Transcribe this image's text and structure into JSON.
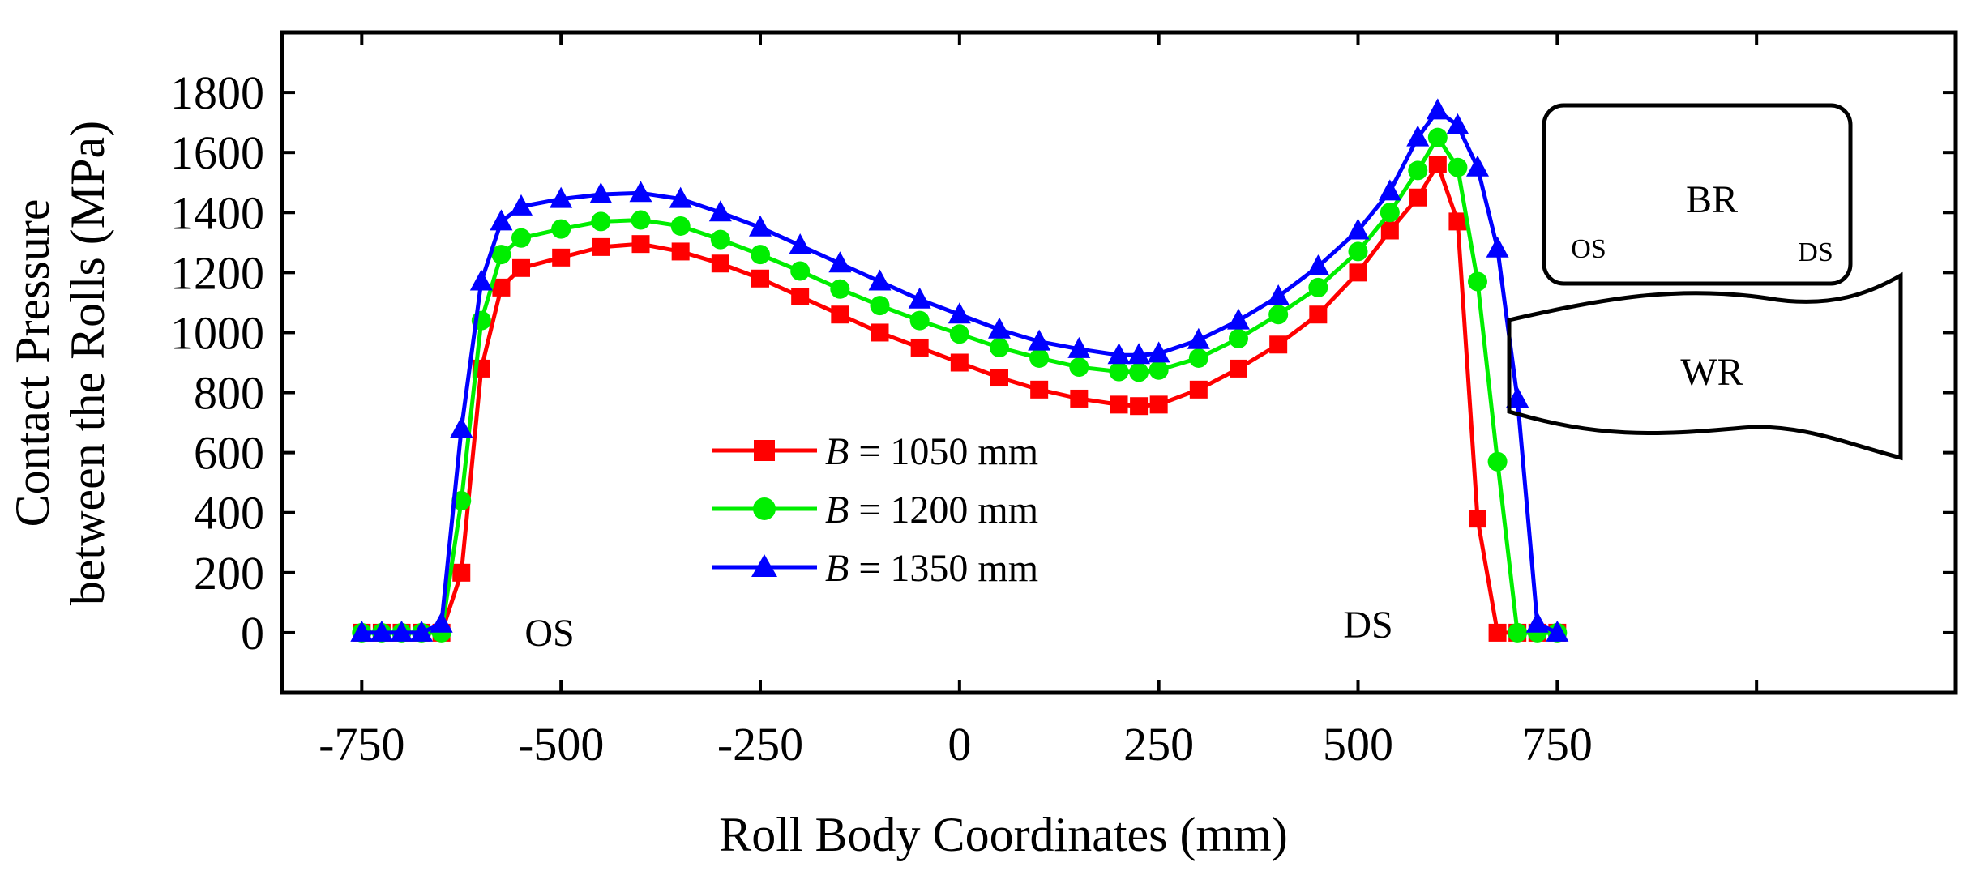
{
  "chart_data": {
    "type": "line",
    "title": "",
    "xlabel": "Roll Body Coordinates (mm)",
    "ylabel_line1": "Contact Pressure",
    "ylabel_line2": "between the Rolls (MPa)",
    "xlim": [
      -850,
      1250
    ],
    "ylim": [
      -200,
      2000
    ],
    "xticks": [
      -750,
      -500,
      -250,
      0,
      250,
      500,
      750
    ],
    "xtick_labels": [
      "-750",
      "-500",
      "-250",
      "0",
      "250",
      "500",
      "750"
    ],
    "yticks": [
      0,
      200,
      400,
      600,
      800,
      1000,
      1200,
      1400,
      1600,
      1800
    ],
    "ytick_labels": [
      "0",
      "200",
      "400",
      "600",
      "800",
      "1000",
      "1200",
      "1400",
      "1600",
      "1800"
    ],
    "grid": false,
    "legend_position": "center",
    "legend": [
      {
        "italic": "B",
        "rest": " = 1050 mm"
      },
      {
        "italic": "B",
        "rest": " = 1200 mm"
      },
      {
        "italic": "B",
        "rest": " = 1350 mm"
      }
    ],
    "annotations": {
      "os_label": "OS",
      "ds_label": "DS"
    },
    "inset": {
      "br_label": "BR",
      "wr_label": "WR",
      "os_label": "OS",
      "ds_label": "DS"
    },
    "series": [
      {
        "name": "B = 1050 mm",
        "color": "#ff0000",
        "marker": "square",
        "x": [
          -750,
          -725,
          -700,
          -675,
          -650,
          -625,
          -600,
          -575,
          -550,
          -500,
          -450,
          -400,
          -350,
          -300,
          -250,
          -200,
          -150,
          -100,
          -50,
          0,
          50,
          100,
          150,
          200,
          225,
          250,
          300,
          350,
          400,
          450,
          500,
          540,
          575,
          600,
          625,
          650,
          675,
          700,
          725,
          750
        ],
        "y": [
          0,
          0,
          0,
          0,
          0,
          200,
          880,
          1150,
          1215,
          1250,
          1285,
          1295,
          1270,
          1230,
          1180,
          1120,
          1060,
          1000,
          950,
          900,
          850,
          810,
          780,
          760,
          755,
          760,
          810,
          880,
          960,
          1060,
          1200,
          1340,
          1450,
          1560,
          1370,
          380,
          0,
          0,
          0,
          0
        ]
      },
      {
        "name": "B = 1200 mm",
        "color": "#00ee00",
        "marker": "circle",
        "x": [
          -750,
          -725,
          -700,
          -675,
          -650,
          -625,
          -600,
          -575,
          -550,
          -500,
          -450,
          -400,
          -350,
          -300,
          -250,
          -200,
          -150,
          -100,
          -50,
          0,
          50,
          100,
          150,
          200,
          225,
          250,
          300,
          350,
          400,
          450,
          500,
          540,
          575,
          600,
          625,
          650,
          675,
          700,
          725,
          750
        ],
        "y": [
          0,
          0,
          0,
          0,
          0,
          440,
          1040,
          1260,
          1315,
          1345,
          1370,
          1375,
          1355,
          1310,
          1260,
          1205,
          1145,
          1090,
          1040,
          995,
          950,
          915,
          885,
          870,
          868,
          875,
          915,
          980,
          1060,
          1150,
          1270,
          1400,
          1540,
          1650,
          1550,
          1170,
          570,
          0,
          0,
          0
        ]
      },
      {
        "name": "B = 1350 mm",
        "color": "#0000ff",
        "marker": "triangle",
        "x": [
          -750,
          -725,
          -700,
          -675,
          -650,
          -625,
          -600,
          -575,
          -550,
          -500,
          -450,
          -400,
          -350,
          -300,
          -250,
          -200,
          -150,
          -100,
          -50,
          0,
          50,
          100,
          150,
          200,
          225,
          250,
          300,
          350,
          400,
          450,
          500,
          540,
          575,
          600,
          625,
          650,
          675,
          700,
          725,
          750
        ],
        "y": [
          0,
          0,
          0,
          0,
          30,
          680,
          1170,
          1370,
          1420,
          1445,
          1460,
          1465,
          1445,
          1400,
          1350,
          1290,
          1230,
          1170,
          1110,
          1060,
          1010,
          970,
          945,
          925,
          925,
          930,
          975,
          1040,
          1120,
          1220,
          1340,
          1470,
          1650,
          1740,
          1690,
          1550,
          1280,
          780,
          30,
          0
        ]
      }
    ]
  }
}
